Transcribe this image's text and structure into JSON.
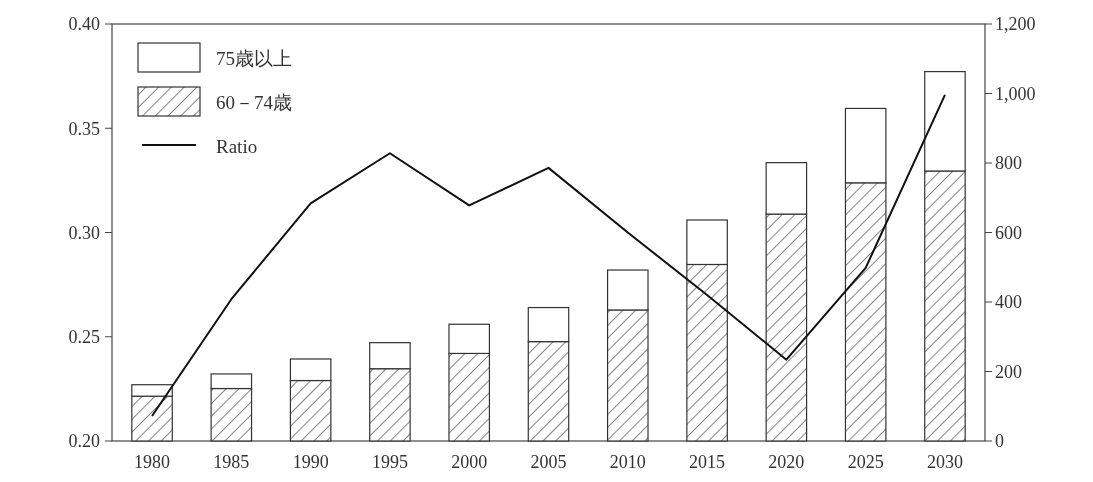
{
  "chart_data": {
    "type": "bar",
    "categories": [
      "1980",
      "1985",
      "1990",
      "1995",
      "2000",
      "2005",
      "2010",
      "2015",
      "2020",
      "2025",
      "2030"
    ],
    "stacked": true,
    "legend": "top left",
    "series": [
      {
        "name": "60－74歳",
        "axis": "y2",
        "color": "#333333",
        "values": [
          129,
          151,
          174,
          208,
          252,
          286,
          377,
          508,
          653,
          743,
          777
        ]
      },
      {
        "name": "75歳以上",
        "axis": "y2",
        "color": "#ffffff",
        "values": [
          33,
          42,
          62,
          75,
          84,
          98,
          115,
          128,
          148,
          214,
          286
        ]
      },
      {
        "name": "Ratio",
        "type": "line",
        "color": "#111111",
        "values": [
          0.212,
          0.268,
          0.314,
          0.338,
          0.313,
          0.331,
          0.3,
          0.27,
          0.239,
          0.283,
          0.366
        ]
      }
    ],
    "ylim": [
      0.2,
      0.4
    ],
    "yticks": [
      {
        "value": 0.2,
        "label": "0.20"
      },
      {
        "value": 0.25,
        "label": "0.25"
      },
      {
        "value": 0.3,
        "label": "0.30"
      },
      {
        "value": 0.35,
        "label": "0.35"
      },
      {
        "value": 0.4,
        "label": "0.40"
      }
    ],
    "y2lim": [
      0,
      1200
    ],
    "y2ticks": [
      0,
      200,
      400,
      600,
      800,
      {
        "value": 1000,
        "label": "1,000"
      },
      {
        "value": 1200,
        "label": "1,200"
      }
    ]
  }
}
